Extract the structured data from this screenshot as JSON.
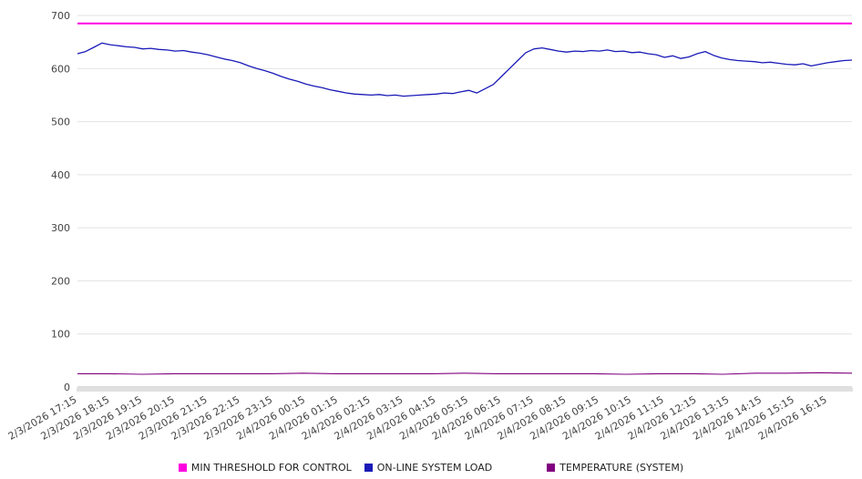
{
  "chart_data": {
    "type": "line",
    "title": "",
    "xlabel": "",
    "ylabel": "",
    "ylim": [
      0,
      700
    ],
    "yticks": [
      0,
      100,
      200,
      300,
      400,
      500,
      600,
      700
    ],
    "grid": true,
    "legend_position": "bottom",
    "x_span_hours": 23.75,
    "x_label_interval_hours": 1,
    "x_labels": [
      "2/3/2026 17:15",
      "2/3/2026 18:15",
      "2/3/2026 19:15",
      "2/3/2026 20:15",
      "2/3/2026 21:15",
      "2/3/2026 22:15",
      "2/3/2026 23:15",
      "2/4/2026 00:15",
      "2/4/2026 01:15",
      "2/4/2026 02:15",
      "2/4/2026 03:15",
      "2/4/2026 04:15",
      "2/4/2026 05:15",
      "2/4/2026 06:15",
      "2/4/2026 07:15",
      "2/4/2026 08:15",
      "2/4/2026 09:15",
      "2/4/2026 10:15",
      "2/4/2026 11:15",
      "2/4/2026 12:15",
      "2/4/2026 13:15",
      "2/4/2026 14:15",
      "2/4/2026 15:15",
      "2/4/2026 16:15"
    ],
    "series": [
      {
        "name": "MIN THRESHOLD FOR CONTROL",
        "color": "#ff00e0",
        "constant": 685
      },
      {
        "name": "ON-LINE SYSTEM LOAD",
        "color": "#1a1ab8",
        "values": [
          628,
          632,
          640,
          648,
          645,
          643,
          641,
          640,
          637,
          638,
          636,
          635,
          633,
          634,
          631,
          629,
          626,
          622,
          618,
          615,
          611,
          605,
          600,
          596,
          591,
          585,
          580,
          576,
          571,
          567,
          564,
          560,
          557,
          554,
          552,
          551,
          550,
          551,
          549,
          550,
          548,
          549,
          550,
          551,
          552,
          554,
          553,
          556,
          559,
          554,
          562,
          570,
          585,
          600,
          615,
          630,
          637,
          639,
          636,
          633,
          631,
          633,
          632,
          634,
          633,
          635,
          632,
          633,
          630,
          631,
          628,
          626,
          621,
          624,
          619,
          622,
          628,
          632,
          625,
          620,
          617,
          615,
          614,
          613,
          611,
          612,
          610,
          608,
          607,
          609,
          605,
          608,
          611,
          613,
          615,
          616
        ]
      },
      {
        "name": "TEMPERATURE (SYSTEM)",
        "color": "#800080",
        "values": [
          25,
          25,
          24,
          25,
          25,
          25,
          25,
          26,
          25,
          25,
          25,
          25,
          26,
          25,
          25,
          25,
          25,
          24,
          25,
          25,
          24,
          26,
          26,
          27,
          26
        ]
      }
    ]
  }
}
